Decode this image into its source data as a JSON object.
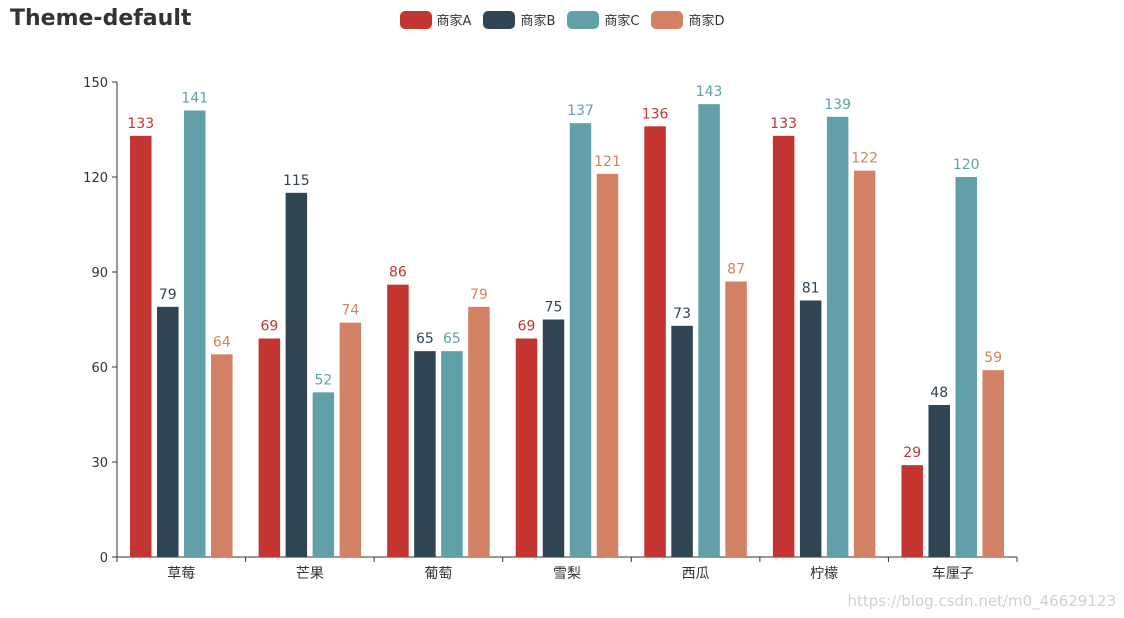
{
  "chart_data": {
    "type": "bar",
    "title": "Theme-default",
    "categories": [
      "草莓",
      "芒果",
      "葡萄",
      "雪梨",
      "西瓜",
      "柠檬",
      "车厘子"
    ],
    "series": [
      {
        "name": "商家A",
        "color": "#c23531",
        "values": [
          133,
          69,
          86,
          69,
          136,
          133,
          29
        ]
      },
      {
        "name": "商家B",
        "color": "#2f4554",
        "values": [
          79,
          115,
          65,
          75,
          73,
          81,
          48
        ]
      },
      {
        "name": "商家C",
        "color": "#61a0a8",
        "values": [
          141,
          52,
          65,
          137,
          143,
          139,
          120
        ]
      },
      {
        "name": "商家D",
        "color": "#d48265",
        "values": [
          64,
          74,
          79,
          121,
          87,
          122,
          59
        ]
      }
    ],
    "ylim": [
      0,
      150
    ],
    "yticks": [
      0,
      30,
      60,
      90,
      120,
      150
    ],
    "xlabel": "",
    "ylabel": "",
    "grid": false,
    "legend_position": "top-center"
  },
  "watermark": "https://blog.csdn.net/m0_46629123"
}
